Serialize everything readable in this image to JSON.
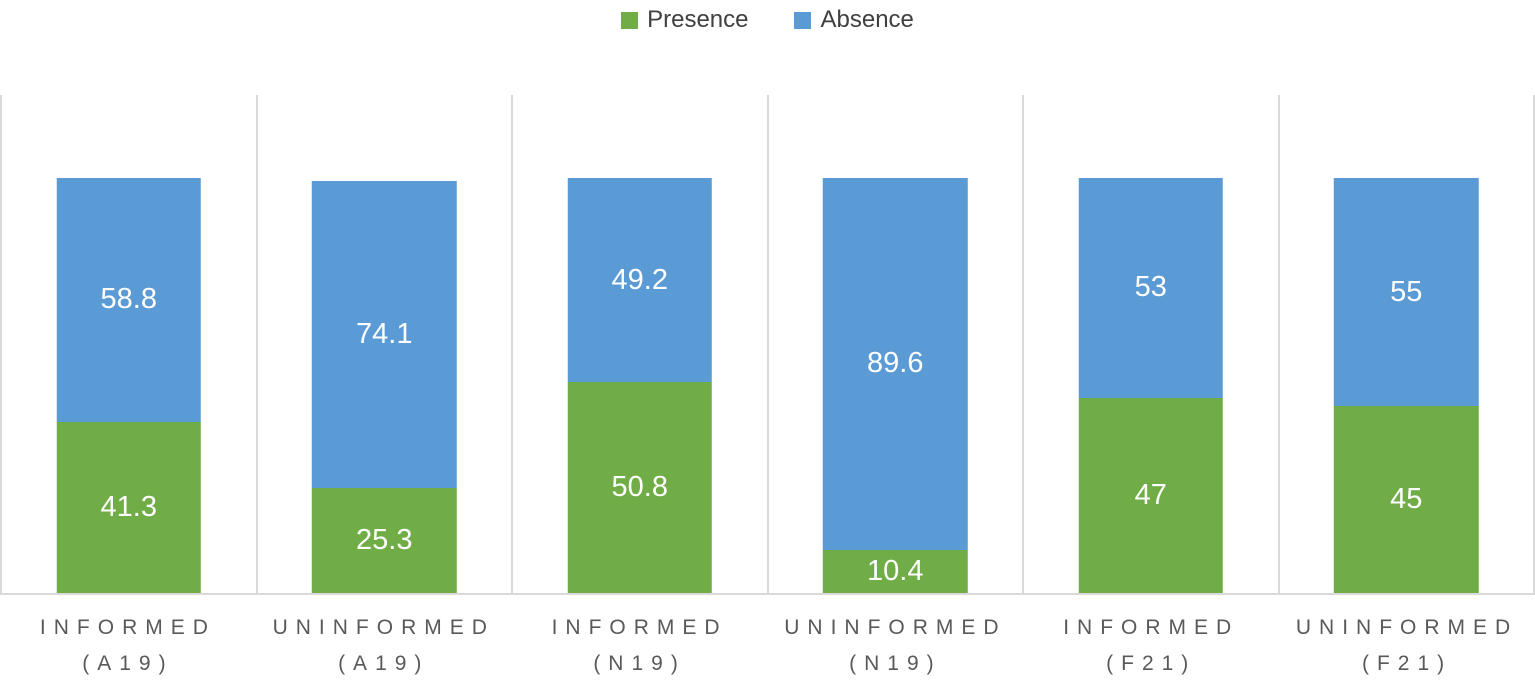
{
  "chart_data": {
    "type": "bar",
    "stacked": true,
    "title": "",
    "xlabel": "",
    "ylabel": "",
    "ylim": [
      0,
      120
    ],
    "grid": "vertical-category-separators",
    "legend_position": "top-center",
    "categories": [
      "INFORMED (A19)",
      "UNINFORMED (A19)",
      "INFORMED (N19)",
      "UNINFORMED (N19)",
      "INFORMED (F21)",
      "UNINFORMED (F21)"
    ],
    "category_lines": [
      [
        "INFORMED",
        "(A19)"
      ],
      [
        "UNINFORMED",
        "(A19)"
      ],
      [
        "INFORMED",
        "(N19)"
      ],
      [
        "UNINFORMED",
        "(N19)"
      ],
      [
        "INFORMED",
        "(F21)"
      ],
      [
        "UNINFORMED",
        "(F21)"
      ]
    ],
    "series": [
      {
        "name": "Presence",
        "color": "#70AD47",
        "values": [
          41.3,
          25.3,
          50.8,
          10.4,
          47,
          45
        ]
      },
      {
        "name": "Absence",
        "color": "#5B9BD5",
        "values": [
          58.8,
          74.1,
          49.2,
          89.6,
          53,
          55
        ]
      }
    ],
    "value_label_color": "#FFFFFF",
    "axis_label_color": "#595959",
    "legend_text_color": "#404040",
    "gridline_color": "#D9D9D9"
  }
}
